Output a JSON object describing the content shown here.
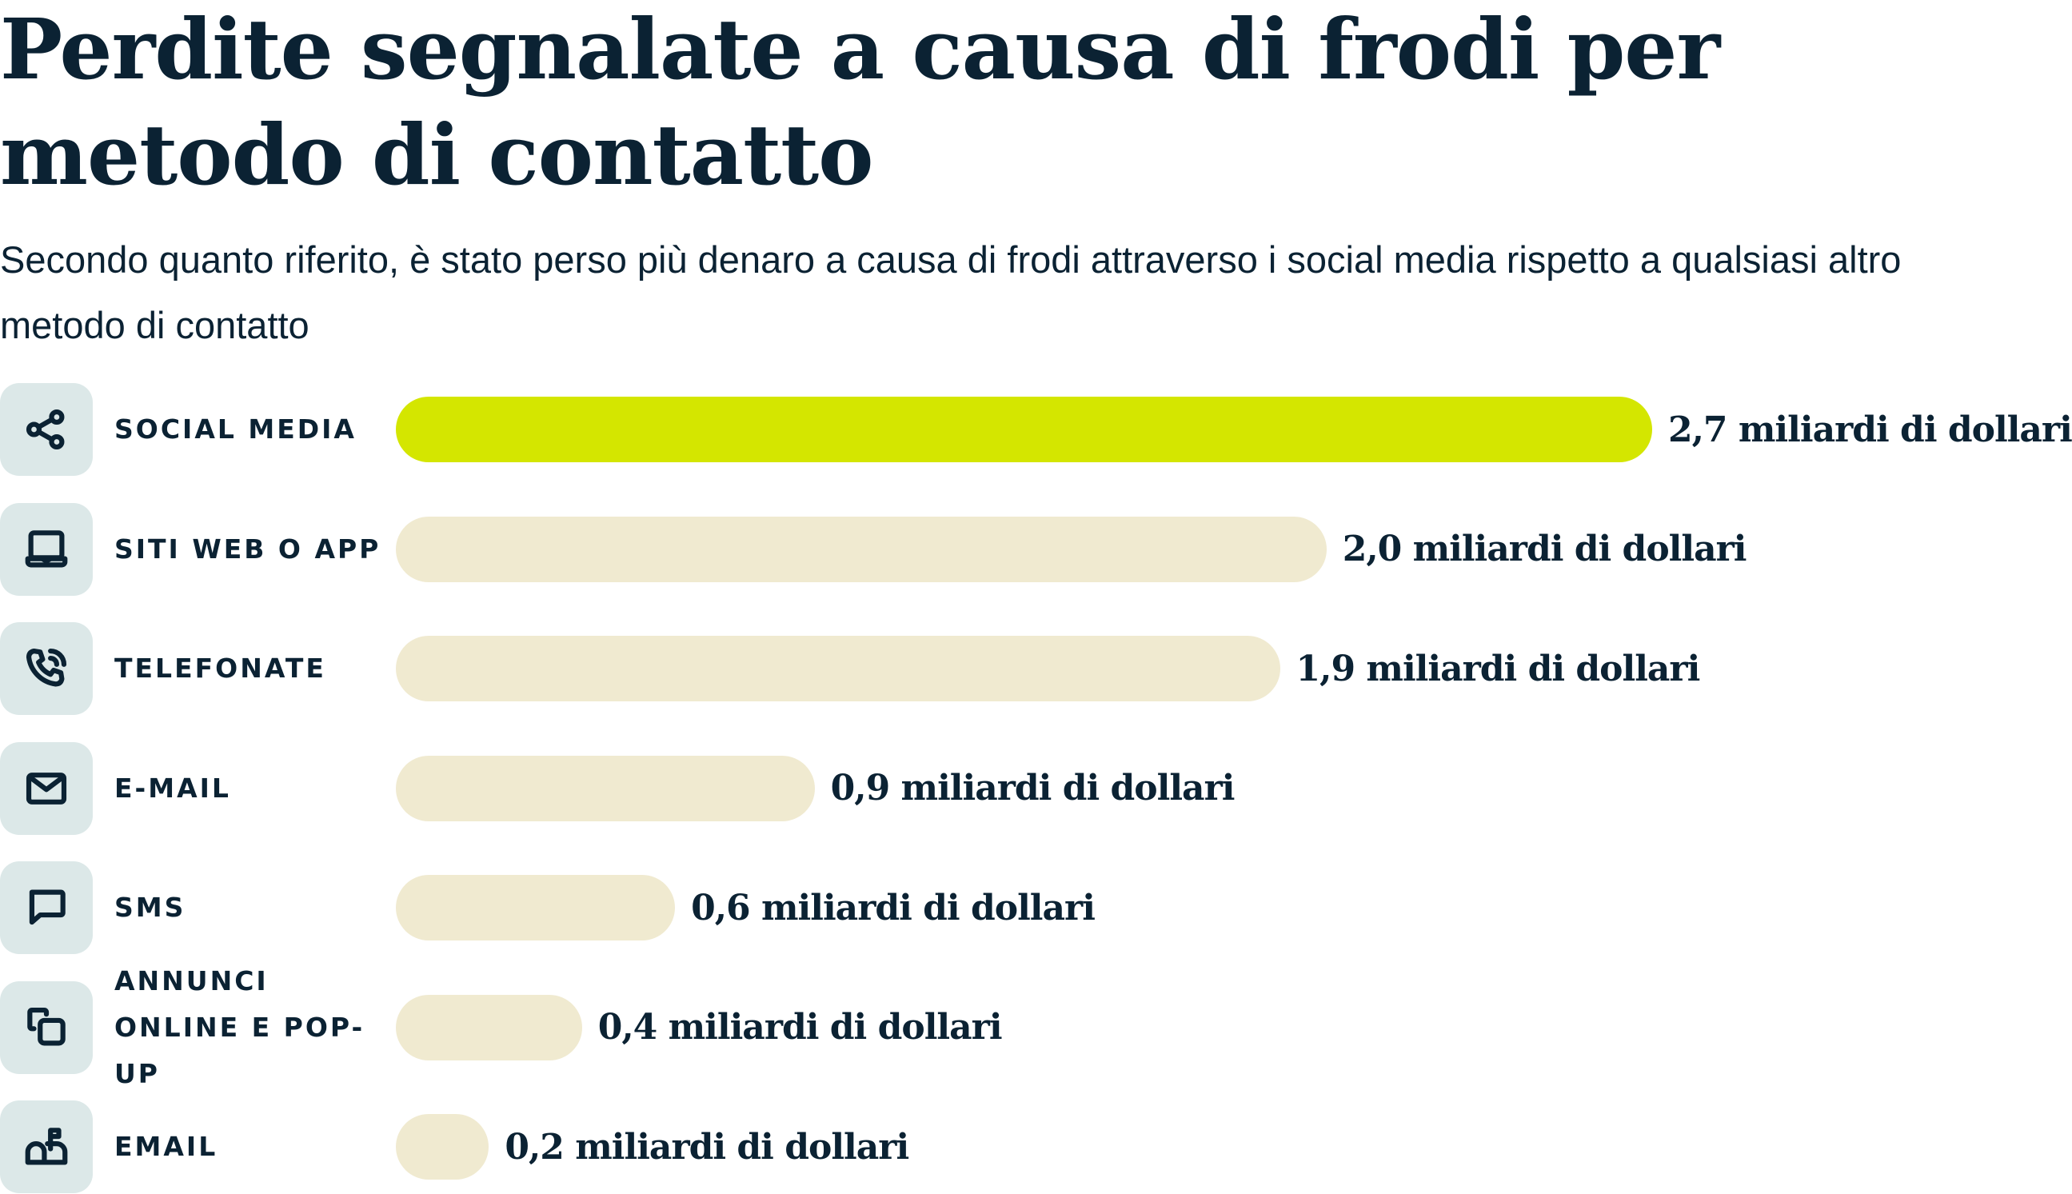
{
  "chart_data": {
    "type": "bar",
    "orientation": "horizontal",
    "title": "Perdite segnalate a causa di frodi per metodo di contatto",
    "subtitle": "Secondo quanto riferito, è stato perso più denaro a causa di frodi attraverso i social media rispetto a qualsiasi altro metodo di contatto",
    "categories": [
      "SOCIAL MEDIA",
      "SITI WEB O APP",
      "TELEFONATE",
      "E-MAIL",
      "SMS",
      "ANNUNCI ONLINE E POP-UP",
      "EMAIL"
    ],
    "values": [
      2.7,
      2.0,
      1.9,
      0.9,
      0.6,
      0.4,
      0.2
    ],
    "unit": "miliardi di dollari",
    "data_labels": [
      "2,7 miliardi di dollari",
      "2,0 miliardi di dollari",
      "1,9 miliardi di dollari",
      "0,9 miliardi di dollari",
      "0,6 miliardi di dollari",
      "0,4 miliardi di dollari",
      "0,2 miliardi di dollari"
    ],
    "icons": [
      "share-icon",
      "laptop-icon",
      "phone-icon",
      "envelope-icon",
      "chat-bubble-icon",
      "popup-windows-icon",
      "mailbox-icon"
    ],
    "grid": false,
    "colors": {
      "highlight": "#d4e600",
      "bar": "#f0ead0",
      "text": "#0b2233",
      "icon_bg": "#dce8e8"
    }
  }
}
